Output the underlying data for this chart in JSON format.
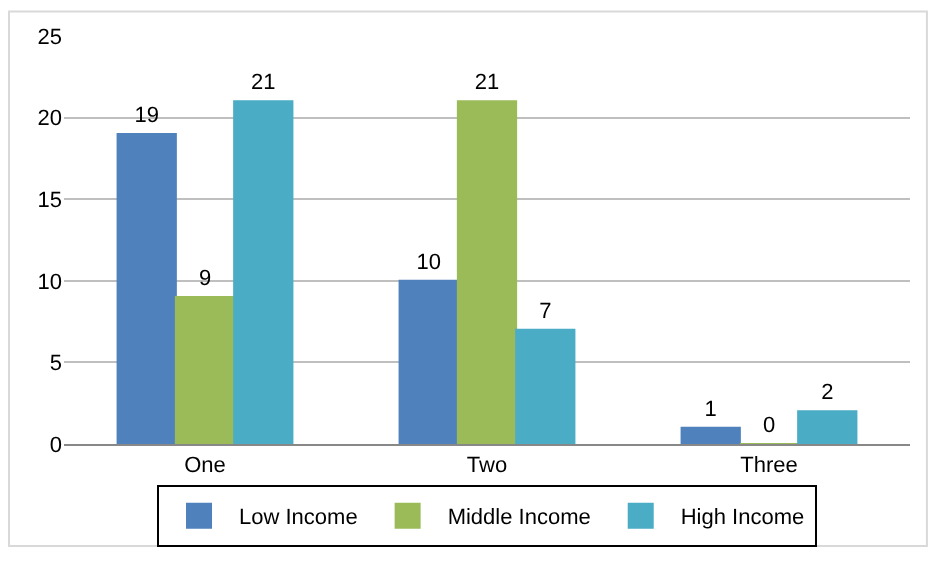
{
  "chart_data": {
    "type": "bar",
    "categories": [
      "One",
      "Two",
      "Three"
    ],
    "series": [
      {
        "name": "Low Income",
        "color": "#4f81bd",
        "values": [
          19,
          10,
          1
        ]
      },
      {
        "name": "Middle Income",
        "color": "#9bbb59",
        "values": [
          9,
          21,
          0
        ]
      },
      {
        "name": "High Income",
        "color": "#4bacc6",
        "values": [
          21,
          7,
          2
        ]
      }
    ],
    "ylim": [
      0,
      25
    ],
    "yticks": [
      0,
      5,
      10,
      15,
      20,
      25
    ],
    "grid": "y",
    "legend": "bottom",
    "data_labels": true
  }
}
